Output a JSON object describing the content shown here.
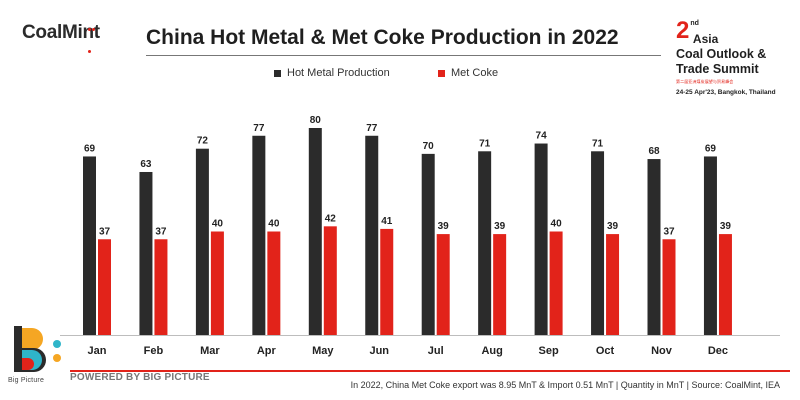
{
  "brand": {
    "logo_text": "CoalMint"
  },
  "chart_data": {
    "type": "bar",
    "title": "China Hot Metal & Met Coke Production in 2022",
    "categories": [
      "Jan",
      "Feb",
      "Mar",
      "Apr",
      "May",
      "Jun",
      "Jul",
      "Aug",
      "Sep",
      "Oct",
      "Nov",
      "Dec"
    ],
    "series": [
      {
        "name": "Hot Metal Production",
        "color": "#2b2b2b",
        "values": [
          69,
          63,
          72,
          77,
          80,
          77,
          70,
          71,
          74,
          71,
          68,
          69
        ]
      },
      {
        "name": "Met Coke",
        "color": "#e2231a",
        "values": [
          37,
          37,
          40,
          40,
          42,
          41,
          39,
          39,
          40,
          39,
          37,
          39
        ]
      }
    ],
    "ylim": [
      0,
      80
    ],
    "data_labels": true,
    "legend_position": "top",
    "grid": false
  },
  "event": {
    "number": "2",
    "superscript": "nd",
    "region": "Asia",
    "name_line1": "Coal Outlook &",
    "name_line2": "Trade Summit",
    "subtitle": "第二届亚洲煤炭展望与贸易峰会",
    "date_location": "24-25 Apr'23, Bangkok, Thailand"
  },
  "footer": {
    "powered_by": "POWERED BY BIG PICTURE",
    "big_picture_label": "Big Picture",
    "note": "In 2022, China Met Coke export was 8.95 MnT & Import 0.51 MnT | Quantity in MnT | Source: CoalMint, IEA"
  }
}
